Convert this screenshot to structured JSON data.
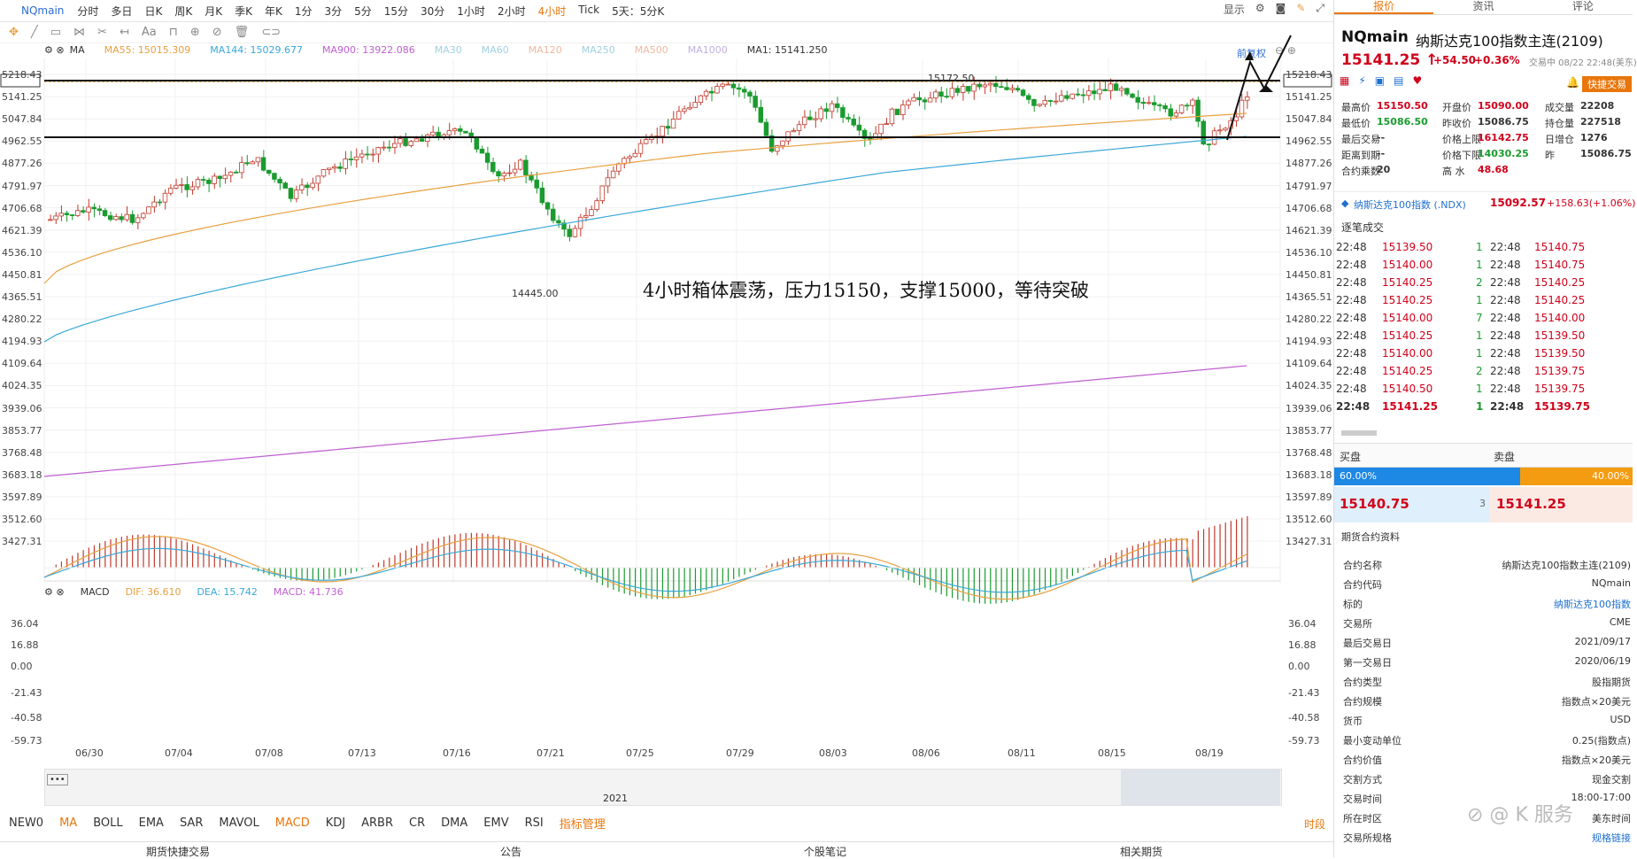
{
  "symbol": "NQmain",
  "periods": [
    "分时",
    "多日",
    "日K",
    "周K",
    "月K",
    "季K",
    "年K",
    "1分",
    "3分",
    "5分",
    "15分",
    "30分",
    "1小时",
    "2小时",
    "4小时",
    "Tick",
    "5天：5分K"
  ],
  "active_period": "4小时",
  "top_right": {
    "show_label": "显示"
  },
  "chart_controls": {
    "fuquan": "前复权"
  },
  "ma_legend": {
    "title": "MA",
    "items": [
      {
        "label": "MA55: 15015.309",
        "color": "#e8a040"
      },
      {
        "label": "MA144: 15029.677",
        "color": "#3aa8d8"
      },
      {
        "label": "MA900: 13922.086",
        "color": "#c060d0"
      },
      {
        "label": "MA30",
        "color": "#a0d0e0"
      },
      {
        "label": "MA60",
        "color": "#a0d0e0"
      },
      {
        "label": "MA120",
        "color": "#f0b8a0"
      },
      {
        "label": "MA250",
        "color": "#a0d0e0"
      },
      {
        "label": "MA500",
        "color": "#f0b8a0"
      },
      {
        "label": "MA1000",
        "color": "#c0b0e0"
      },
      {
        "label": "MA1: 15141.250",
        "color": "#333333"
      }
    ]
  },
  "price_axis": [
    "5218.43",
    "5141.25",
    "5047.84",
    "4962.55",
    "4877.26",
    "4791.97",
    "4706.68",
    "4621.39",
    "4536.10",
    "4450.81",
    "4365.51",
    "4280.22",
    "4194.93",
    "4109.64",
    "4024.35",
    "3939.06",
    "3853.77",
    "3768.48",
    "3683.18",
    "3597.89",
    "3512.60",
    "3427.31"
  ],
  "price_axis_right": [
    "15218.43",
    "15141.25",
    "15047.84",
    "14962.55",
    "14877.26",
    "14791.97",
    "14706.68",
    "14621.39",
    "14536.10",
    "14450.81",
    "14365.51",
    "14280.22",
    "14194.93",
    "14109.64",
    "14024.35",
    "13939.06",
    "13853.77",
    "13768.48",
    "13683.18",
    "13597.89",
    "13512.60",
    "13427.31"
  ],
  "annotations": {
    "high": "15172.50",
    "low": "14445.00",
    "note": "4小时箱体震荡，压力15150，支撑15000，等待突破"
  },
  "macd_legend": {
    "title": "MACD",
    "dif": "DIF: 36.610",
    "dea": "DEA: 15.742",
    "macd": "MACD: 41.736"
  },
  "macd_axis": [
    "36.04",
    "16.88",
    "0.00",
    "-21.43",
    "-40.58",
    "-59.73"
  ],
  "date_axis": [
    "06/30",
    "07/04",
    "07/08",
    "07/13",
    "07/16",
    "07/21",
    "07/25",
    "07/29",
    "08/03",
    "08/06",
    "08/11",
    "08/15",
    "08/19"
  ],
  "navigator_year": "2021",
  "indicator_tabs": [
    "NEW0",
    "MA",
    "BOLL",
    "EMA",
    "SAR",
    "MAVOL",
    "MACD",
    "KDJ",
    "ARBR",
    "CR",
    "DMA",
    "EMV",
    "RSI",
    "指标管理"
  ],
  "indicator_active": [
    "MA",
    "MACD",
    "指标管理"
  ],
  "indicator_right": "时段",
  "footer": [
    "期货快捷交易",
    "公告",
    "个股笔记",
    "相关期货"
  ],
  "right_panel": {
    "tabs": [
      "报价",
      "资讯",
      "评论"
    ],
    "symbol": "NQmain",
    "name": "纳斯达克100指数主连(2109)",
    "price": "15141.25",
    "change": "+54.50",
    "change_pct": "+0.36%",
    "trade_time": "交易中 08/22 22:48(美东)",
    "quick_trade": "快捷交易",
    "stats": [
      [
        {
          "k": "最高价",
          "v": "15150.50",
          "c": "red"
        },
        {
          "k": "开盘价",
          "v": "15090.00",
          "c": "red"
        },
        {
          "k": "成交量",
          "v": "22208",
          "c": ""
        }
      ],
      [
        {
          "k": "最低价",
          "v": "15086.50",
          "c": "green"
        },
        {
          "k": "昨收价",
          "v": "15086.75",
          "c": ""
        },
        {
          "k": "持仓量",
          "v": "227518",
          "c": ""
        }
      ],
      [
        {
          "k": "最后交易",
          "v": "--",
          "c": ""
        },
        {
          "k": "价格上限",
          "v": "16142.75",
          "c": "red"
        },
        {
          "k": "日增仓",
          "v": "1276",
          "c": ""
        }
      ],
      [
        {
          "k": "距离到期",
          "v": "--",
          "c": ""
        },
        {
          "k": "价格下限",
          "v": "14030.25",
          "c": "green"
        },
        {
          "k": "昨",
          "v": "15086.75",
          "c": ""
        }
      ],
      [
        {
          "k": "合约乘数",
          "v": "20",
          "c": ""
        },
        {
          "k": "高 水",
          "v": "48.68",
          "c": "red"
        }
      ]
    ],
    "index_name": "纳斯达克100指数 (.NDX)",
    "index_price": "15092.57",
    "index_change": "+158.63(+1.06%)",
    "ticks_title": "逐笔成交",
    "ticks": [
      [
        "22:48",
        "15139.50",
        "1",
        "22:48",
        "15140.75"
      ],
      [
        "22:48",
        "15140.00",
        "1",
        "22:48",
        "15140.75"
      ],
      [
        "22:48",
        "15140.25",
        "2",
        "22:48",
        "15140.25"
      ],
      [
        "22:48",
        "15140.25",
        "1",
        "22:48",
        "15140.25"
      ],
      [
        "22:48",
        "15140.00",
        "7",
        "22:48",
        "15140.00"
      ],
      [
        "22:48",
        "15140.25",
        "1",
        "22:48",
        "15139.50"
      ],
      [
        "22:48",
        "15140.00",
        "1",
        "22:48",
        "15139.50"
      ],
      [
        "22:48",
        "15140.25",
        "2",
        "22:48",
        "15139.75"
      ],
      [
        "22:48",
        "15140.50",
        "1",
        "22:48",
        "15139.75"
      ],
      [
        "22:48",
        "15141.25",
        "1",
        "22:48",
        "15139.75"
      ]
    ],
    "book": {
      "buy_label": "买盘",
      "sell_label": "卖盘",
      "buy_pct": "60.00%",
      "sell_pct": "40.00%",
      "bid": "15140.75",
      "bid_qty": "3",
      "ask": "15141.25"
    },
    "contract_title": "期货合约资料",
    "contract": [
      {
        "k": "合约名称",
        "v": "纳斯达克100指数主连(2109)"
      },
      {
        "k": "合约代码",
        "v": "NQmain"
      },
      {
        "k": "标的",
        "v": "纳斯达克100指数"
      },
      {
        "k": "交易所",
        "v": "CME"
      },
      {
        "k": "最后交易日",
        "v": "2021/09/17"
      },
      {
        "k": "第一交易日",
        "v": "2020/06/19"
      },
      {
        "k": "合约类型",
        "v": "股指期货"
      },
      {
        "k": "合约规模",
        "v": "指数点×20美元"
      },
      {
        "k": "货币",
        "v": "USD"
      },
      {
        "k": "最小变动单位",
        "v": "0.25(指数点)"
      },
      {
        "k": "合约价值",
        "v": "指数点×20美元"
      },
      {
        "k": "交割方式",
        "v": "现金交割"
      },
      {
        "k": "交易时间",
        "v": "18:00-17:00"
      },
      {
        "k": "所在时区",
        "v": "美东时间"
      },
      {
        "k": "交易所规格",
        "v": "规格链接"
      }
    ],
    "watermark": "K 服务"
  }
}
